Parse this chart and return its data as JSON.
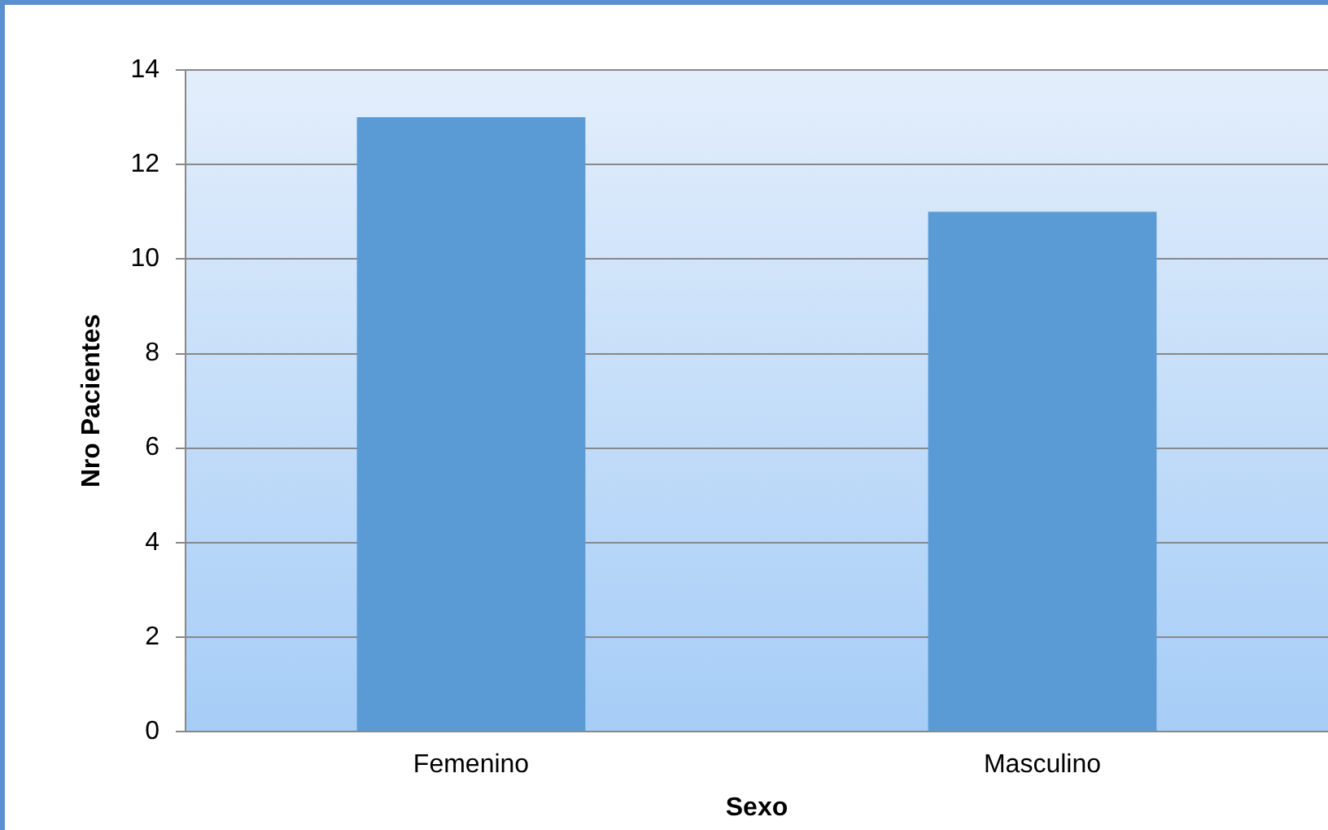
{
  "chart_data": {
    "type": "bar",
    "categories": [
      "Femenino",
      "Masculino"
    ],
    "values": [
      13,
      11
    ],
    "color": "#5b9bd5",
    "xlabel": "Sexo",
    "ylabel": "Nro Pacientes",
    "ylim": [
      0,
      14
    ],
    "yticks": [
      0,
      2,
      4,
      6,
      8,
      10,
      12,
      14
    ],
    "grid": "y",
    "legend": false
  }
}
